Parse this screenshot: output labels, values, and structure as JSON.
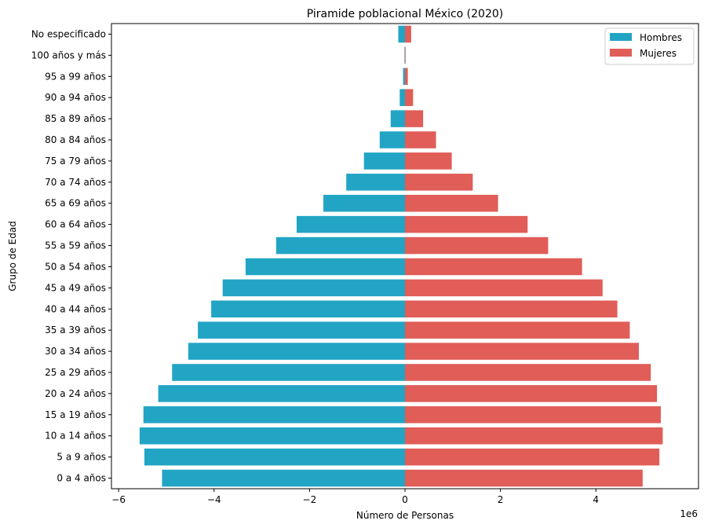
{
  "chart_data": {
    "type": "bar",
    "orientation": "horizontal",
    "title": "Piramide poblacional México (2020)",
    "xlabel": "Número de Personas",
    "ylabel": "Grupo de Edad",
    "x_offset_label": "1e6",
    "xlim": [
      -6.15,
      6.15
    ],
    "xticks": [
      -6,
      -4,
      -2,
      0,
      2,
      4
    ],
    "xtick_labels": [
      "−6",
      "−4",
      "−2",
      "0",
      "2",
      "4"
    ],
    "categories": [
      "No especificado",
      "100 años y más",
      "95 a 99 años",
      "90 a 94 años",
      "85 a 89 años",
      "80 a 84 años",
      "75 a 79 años",
      "70 a 74 años",
      "65 a 69 años",
      "60 a 64 años",
      "55 a 59 años",
      "50 a 54 años",
      "45 a 49 años",
      "40 a 44 años",
      "35 a 39 años",
      "30 a 34 años",
      "25 a 29 años",
      "20 a 24 años",
      "15 a 19 años",
      "10 a 14 años",
      "5 a 9 años",
      "0 a 4 años"
    ],
    "series": [
      {
        "name": "Hombres",
        "color": "#22a5c4",
        "values": [
          -0.14,
          -0.01,
          -0.04,
          -0.11,
          -0.3,
          -0.53,
          -0.86,
          -1.23,
          -1.71,
          -2.27,
          -2.7,
          -3.34,
          -3.82,
          -4.06,
          -4.34,
          -4.54,
          -4.88,
          -5.17,
          -5.48,
          -5.56,
          -5.46,
          -5.09
        ]
      },
      {
        "name": "Mujeres",
        "color": "#e05d58",
        "values": [
          0.13,
          0.01,
          0.06,
          0.17,
          0.38,
          0.65,
          0.98,
          1.42,
          1.95,
          2.57,
          3.0,
          3.71,
          4.14,
          4.45,
          4.71,
          4.9,
          5.15,
          5.28,
          5.36,
          5.4,
          5.33,
          4.98
        ]
      }
    ],
    "legend_position": "top-right",
    "grid": false
  }
}
